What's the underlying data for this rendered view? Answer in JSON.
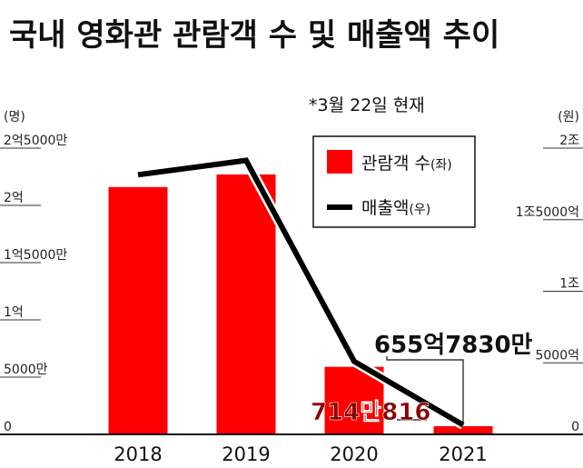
{
  "title": "국내 영화관 관람객 수 및 매출액 추이",
  "note": "*3월 22일 현재",
  "colors": {
    "bar": "#ff0000",
    "line": "#000000",
    "label_red": "#8b0000",
    "text": "#111111"
  },
  "legend": {
    "bar_label": "관람객 수",
    "bar_suffix": "(좌)",
    "line_label": "매출액",
    "line_suffix": "(우)"
  },
  "chart_data": {
    "type": "bar",
    "categories": [
      "2018",
      "2019",
      "2020",
      "2021"
    ],
    "series": [
      {
        "name": "관람객 수",
        "axis": "left",
        "type": "bar",
        "values": [
          216000000,
          227000000,
          59000000,
          7140816
        ]
      },
      {
        "name": "매출액",
        "axis": "right",
        "type": "line",
        "values": [
          1814000000000,
          1914000000000,
          510000000000,
          65578300000
        ]
      }
    ],
    "y_left": {
      "unit": "(명)",
      "ylim": [
        0,
        250000000
      ],
      "ticks": [
        0,
        50000000,
        100000000,
        150000000,
        200000000,
        250000000
      ],
      "tick_labels": [
        "0",
        "5000만",
        "1억",
        "1억5000만",
        "2억",
        "2억5000만"
      ]
    },
    "y_right": {
      "unit": "(원)",
      "ylim": [
        0,
        2000000000000
      ],
      "ticks": [
        0,
        500000000000,
        1000000000000,
        1500000000000,
        2000000000000
      ],
      "tick_labels": [
        "0",
        "5000억",
        "1조",
        "1조5000억",
        "2조"
      ]
    },
    "annotations": {
      "bar_2021": "714만816",
      "line_2021": "655억7830만"
    }
  }
}
